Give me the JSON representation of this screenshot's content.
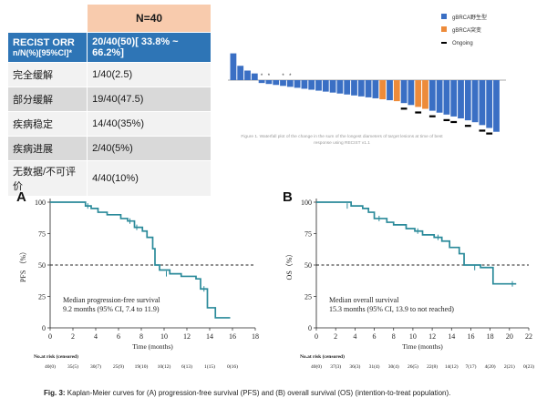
{
  "table": {
    "header": "N=40",
    "orr_label": "RECIST ORR",
    "orr_sublabel": "n/N(%)[95%CI]*",
    "orr_value": "20/40(50)[ 33.8% ~ 66.2%]",
    "rows": [
      {
        "label": "完全缓解",
        "value": "1/40(2.5)"
      },
      {
        "label": "部分缓解",
        "value": "19/40(47.5)"
      },
      {
        "label": "疾病稳定",
        "value": "14/40(35%)"
      },
      {
        "label": "疾病进展",
        "value": "2/40(5%)"
      },
      {
        "label": "无数据/不可评价",
        "value": "4/40(10%)"
      }
    ]
  },
  "colors": {
    "wild": "#3a6fc4",
    "mut": "#ed8b3a",
    "curve": "#2a8a9a",
    "table_blue": "#2e75b6",
    "table_peach": "#f8cbad"
  },
  "chart_data": [
    {
      "type": "bar",
      "title": "Figure 1. Waterfall plot of the change in the sum of the longest diameters of target lesions at time of best response using RECIST v1.1",
      "legend": [
        {
          "name": "gBRCA野生型",
          "color": "#3a6fc4"
        },
        {
          "name": "gBRCA突变",
          "color": "#ed8b3a"
        },
        {
          "name": "Ongoing",
          "color": "#000000"
        }
      ],
      "ylim": [
        -60,
        40
      ],
      "values": [
        28,
        15,
        10,
        7,
        -3,
        -4,
        -5,
        -6,
        -7,
        -8,
        -9,
        -10,
        -11,
        -12,
        -13,
        -14,
        -15,
        -16,
        -17,
        -18,
        -19,
        -20,
        -21,
        -22,
        -24,
        -26,
        -28,
        -30,
        -32,
        -34,
        -36,
        -38,
        -40,
        -42,
        -44,
        -47,
        -50,
        -54
      ],
      "groups": [
        "w",
        "w",
        "w",
        "w",
        "w",
        "w",
        "w",
        "w",
        "w",
        "w",
        "w",
        "w",
        "w",
        "w",
        "w",
        "w",
        "w",
        "w",
        "w",
        "w",
        "w",
        "m",
        "w",
        "m",
        "w",
        "w",
        "m",
        "m",
        "w",
        "w",
        "w",
        "w",
        "w",
        "w",
        "w",
        "w",
        "w",
        "w"
      ],
      "ongoing": [
        24,
        26,
        28,
        30,
        31,
        33,
        35,
        36
      ],
      "markers": [
        "*",
        "*",
        "*",
        "*"
      ],
      "marker_positions": [
        4,
        5,
        7,
        8
      ]
    },
    {
      "type": "line",
      "panel": "A",
      "xlabel": "Time (months)",
      "ylabel": "PFS （%）",
      "xlim": [
        0,
        18
      ],
      "ylim": [
        0,
        100
      ],
      "xticks": [
        0,
        2,
        4,
        6,
        8,
        10,
        12,
        14,
        16,
        18
      ],
      "yticks": [
        0,
        25,
        50,
        75,
        100
      ],
      "ref_line": 50,
      "annotation": [
        "Median progression-free survival",
        "9.2 months (95% CI, 7.4 to 11.9)"
      ],
      "series": [
        {
          "name": "PFS",
          "x": [
            0,
            2.8,
            3.1,
            3.6,
            4.2,
            5.0,
            6.2,
            6.8,
            7.4,
            8.1,
            8.5,
            9.0,
            9.2,
            9.6,
            10.5,
            11.5,
            12.8,
            13.2,
            13.8,
            14.5,
            15.8
          ],
          "y": [
            100,
            100,
            97,
            95,
            92,
            90,
            87,
            85,
            80,
            77,
            72,
            63,
            50,
            46,
            43,
            41,
            39,
            31,
            16,
            8,
            8
          ]
        }
      ],
      "censor_x": [
        3.3,
        7.0,
        7.6,
        10.2,
        13.5
      ],
      "censor_y": [
        97,
        85,
        80,
        43,
        31
      ],
      "risk_title": "No.at risk (censored)",
      "risk_x": [
        0,
        2,
        4,
        6,
        8,
        10,
        12,
        14,
        16
      ],
      "risk": [
        "40(0)",
        "35(5)",
        "30(7)",
        "25(9)",
        "19(10)",
        "10(12)",
        "6(13)",
        "1(15)",
        "0(16)"
      ]
    },
    {
      "type": "line",
      "panel": "B",
      "xlabel": "Time (months)",
      "ylabel": "OS（%）",
      "xlim": [
        0,
        22
      ],
      "ylim": [
        0,
        100
      ],
      "xticks": [
        0,
        2,
        4,
        6,
        8,
        10,
        12,
        14,
        16,
        18,
        20,
        22
      ],
      "yticks": [
        0,
        25,
        50,
        75,
        100
      ],
      "ref_line": 50,
      "annotation": [
        "Median overall survival",
        "15.3 months (95% CI, 13.9 to not reached)"
      ],
      "series": [
        {
          "name": "OS",
          "x": [
            0,
            3.0,
            3.6,
            4.8,
            5.4,
            6.0,
            7.3,
            8.0,
            9.3,
            10.2,
            11.0,
            12.2,
            13.0,
            13.8,
            14.8,
            15.3,
            17.0,
            18.3,
            20.7
          ],
          "y": [
            100,
            100,
            97,
            95,
            92,
            87,
            84,
            82,
            79,
            77,
            74,
            72,
            69,
            64,
            59,
            50,
            48,
            35,
            35
          ]
        }
      ],
      "censor_x": [
        3.2,
        6.5,
        10.5,
        12.6,
        16.4,
        20.3
      ],
      "censor_y": [
        97,
        87,
        77,
        72,
        48,
        35
      ],
      "risk_title": "No.at risk (censored)",
      "risk_x": [
        0,
        2,
        4,
        6,
        8,
        10,
        12,
        14,
        16,
        18,
        20,
        22
      ],
      "risk": [
        "40(0)",
        "37(3)",
        "36(3)",
        "31(4)",
        "30(4)",
        "26(5)",
        "22(8)",
        "14(12)",
        "7(17)",
        "4(20)",
        "2(21)",
        "0(23)"
      ]
    }
  ],
  "caption": {
    "label": "Fig. 3:",
    "text": " Kaplan-Meier curves for (A) progression-free survival (PFS) and (B) overall survival (OS) (intention-to-treat population)."
  }
}
